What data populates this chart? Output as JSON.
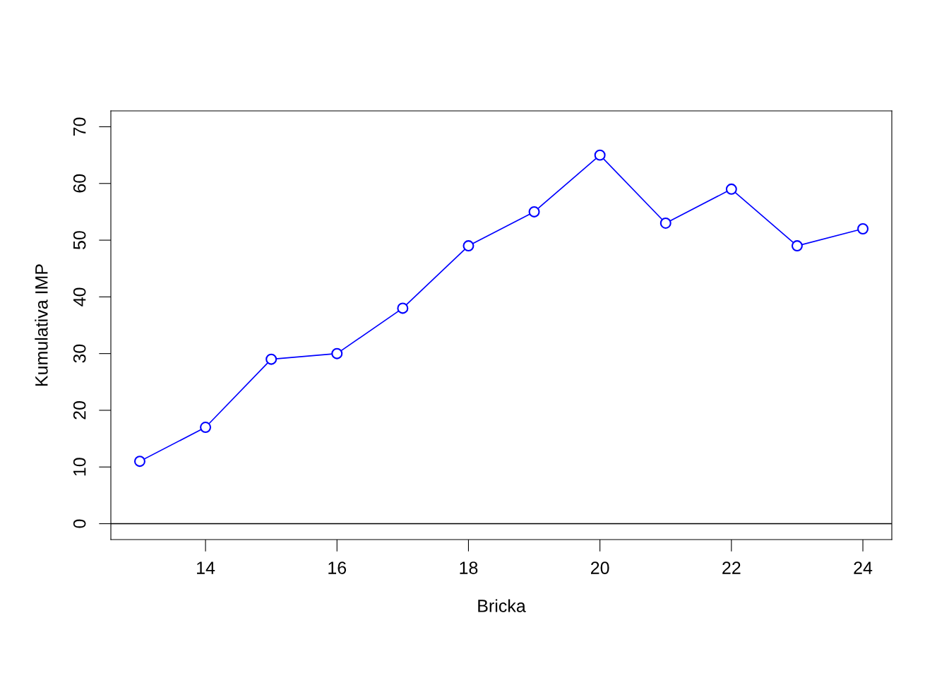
{
  "chart_data": {
    "type": "line",
    "xlabel": "Bricka",
    "ylabel": "Kumulativa IMP",
    "x": [
      13,
      14,
      15,
      16,
      17,
      18,
      19,
      20,
      21,
      22,
      23,
      24
    ],
    "series": [
      {
        "color": "#0000ff",
        "values": [
          11,
          17,
          29,
          30,
          38,
          49,
          55,
          65,
          53,
          59,
          49,
          52
        ]
      }
    ],
    "xlim": [
      12.56,
      24.44
    ],
    "ylim": [
      -2.8,
      72.8
    ],
    "xticks": [
      14,
      16,
      18,
      20,
      22,
      24
    ],
    "yticks": [
      0,
      10,
      20,
      30,
      40,
      50,
      60,
      70
    ],
    "ref_lines": [
      {
        "axis": "y",
        "value": 0,
        "color": "#000000"
      }
    ],
    "marker": "circle",
    "line_style": "solid",
    "grid": false,
    "legend": false
  }
}
